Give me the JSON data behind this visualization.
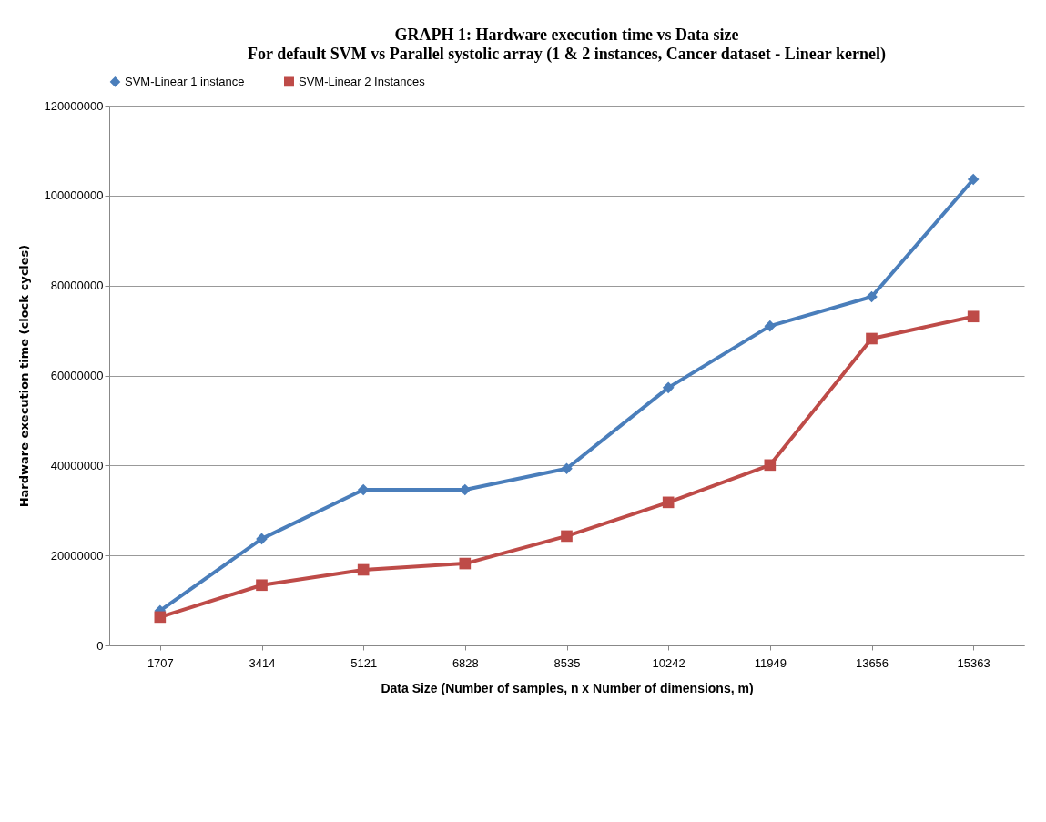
{
  "chart_data": {
    "type": "line",
    "title": "GRAPH 1: Hardware execution time vs Data size",
    "subtitle": "For default SVM vs Parallel systolic array (1 & 2 instances, Cancer dataset - Linear kernel)",
    "xlabel": "Data Size (Number of samples, n x Number of dimensions, m)",
    "ylabel": "Hardware execution time (clock cycles)",
    "categories": [
      "1707",
      "3414",
      "5121",
      "6828",
      "8535",
      "10242",
      "11949",
      "13656",
      "15363"
    ],
    "series": [
      {
        "name": "SVM-Linear 1 instance",
        "color": "#4a7ebb",
        "marker": "diamond",
        "values": [
          7700000,
          23700000,
          34600000,
          34600000,
          39300000,
          57300000,
          71000000,
          77500000,
          103600000
        ]
      },
      {
        "name": "SVM-Linear 2 Instances",
        "color": "#be4b48",
        "marker": "square",
        "values": [
          6300000,
          13400000,
          16800000,
          18200000,
          24300000,
          31800000,
          40100000,
          68200000,
          73100000
        ]
      }
    ],
    "ylim": [
      0,
      120000000
    ],
    "yticks": [
      0,
      20000000,
      40000000,
      60000000,
      80000000,
      100000000,
      120000000
    ],
    "grid": "y",
    "legend": "top",
    "line_style": "solid"
  }
}
